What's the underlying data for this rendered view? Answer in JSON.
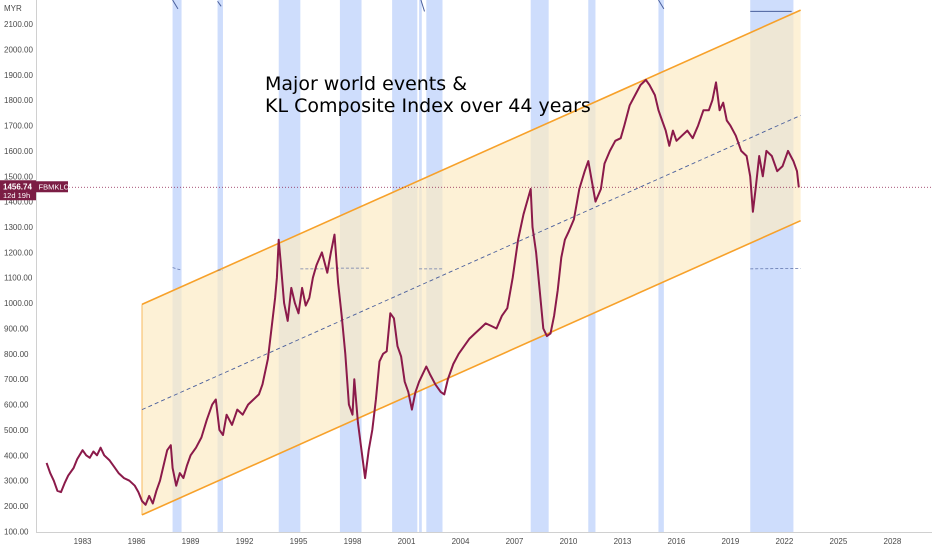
{
  "chart_data": {
    "type": "line",
    "title_lines": [
      "Major world events &",
      "KL Composite Index over 44 years"
    ],
    "y_unit": "MYR",
    "yticks": [
      100,
      200,
      300,
      400,
      500,
      600,
      700,
      800,
      900,
      1000,
      1100,
      1200,
      1300,
      1400,
      1500,
      1600,
      1700,
      1800,
      1900,
      2000,
      2100
    ],
    "ytick_labels": [
      "100.00",
      "200.00",
      "300.00",
      "400.00",
      "500.00",
      "600.00",
      "700.00",
      "800.00",
      "900.00",
      "1000.00",
      "1100.00",
      "1200.00",
      "1300.00",
      "1400.00",
      "1500.00",
      "1600.00",
      "1700.00",
      "1800.00",
      "1900.00",
      "2000.00",
      "2100.00"
    ],
    "xticks": [
      1983,
      1986,
      1989,
      1992,
      1995,
      1998,
      2001,
      2004,
      2007,
      2010,
      2013,
      2016,
      2019,
      2022,
      2025,
      2028
    ],
    "xtick_labels": [
      "1983",
      "1986",
      "1989",
      "1992",
      "1995",
      "1998",
      "2001",
      "2004",
      "2007",
      "2010",
      "2013",
      "2016",
      "2019",
      "2022",
      "2025",
      "2028"
    ],
    "xlim": [
      1978.5,
      2030.2
    ],
    "ylim": [
      70,
      2195
    ],
    "current_value": {
      "value": 1456.74,
      "label": "1456.74",
      "symbol": "FBMKLCI",
      "countdown": "12d 19h"
    },
    "event_bands": [
      {
        "x0": 1988.0,
        "x1": 1988.5
      },
      {
        "x0": 1990.5,
        "x1": 1990.8
      },
      {
        "x0": 1993.9,
        "x1": 1995.1
      },
      {
        "x0": 1997.3,
        "x1": 1998.5
      },
      {
        "x0": 2000.2,
        "x1": 2001.6
      },
      {
        "x0": 2001.7,
        "x1": 2001.85
      },
      {
        "x0": 2002.1,
        "x1": 2003.0
      },
      {
        "x0": 2007.9,
        "x1": 2008.9
      },
      {
        "x0": 2011.1,
        "x1": 2011.5
      },
      {
        "x0": 2015.0,
        "x1": 2015.3
      },
      {
        "x0": 2020.1,
        "x1": 2022.5
      }
    ],
    "regression_channel": {
      "x_start": 1986.3,
      "x_end": 2022.9,
      "upper": [
        995,
        2155
      ],
      "middle": [
        580,
        1740
      ],
      "lower": [
        165,
        1325
      ]
    },
    "series": [
      {
        "values": [
          [
            1981.0,
            370
          ],
          [
            1981.2,
            330
          ],
          [
            1981.4,
            300
          ],
          [
            1981.6,
            260
          ],
          [
            1981.8,
            255
          ],
          [
            1982.0,
            290
          ],
          [
            1982.2,
            320
          ],
          [
            1982.5,
            350
          ],
          [
            1982.7,
            385
          ],
          [
            1983.0,
            420
          ],
          [
            1983.2,
            400
          ],
          [
            1983.4,
            390
          ],
          [
            1983.6,
            415
          ],
          [
            1983.8,
            400
          ],
          [
            1984.0,
            430
          ],
          [
            1984.2,
            400
          ],
          [
            1984.5,
            380
          ],
          [
            1984.7,
            360
          ],
          [
            1985.0,
            330
          ],
          [
            1985.3,
            310
          ],
          [
            1985.6,
            300
          ],
          [
            1985.9,
            280
          ],
          [
            1986.1,
            255
          ],
          [
            1986.3,
            220
          ],
          [
            1986.5,
            205
          ],
          [
            1986.7,
            240
          ],
          [
            1986.9,
            210
          ],
          [
            1987.1,
            260
          ],
          [
            1987.3,
            300
          ],
          [
            1987.5,
            360
          ],
          [
            1987.7,
            420
          ],
          [
            1987.9,
            440
          ],
          [
            1988.0,
            350
          ],
          [
            1988.2,
            280
          ],
          [
            1988.4,
            330
          ],
          [
            1988.6,
            310
          ],
          [
            1988.8,
            360
          ],
          [
            1989.0,
            400
          ],
          [
            1989.3,
            430
          ],
          [
            1989.6,
            470
          ],
          [
            1989.9,
            540
          ],
          [
            1990.2,
            600
          ],
          [
            1990.4,
            620
          ],
          [
            1990.6,
            500
          ],
          [
            1990.8,
            480
          ],
          [
            1991.0,
            560
          ],
          [
            1991.3,
            520
          ],
          [
            1991.6,
            580
          ],
          [
            1991.9,
            560
          ],
          [
            1992.2,
            600
          ],
          [
            1992.5,
            620
          ],
          [
            1992.8,
            640
          ],
          [
            1993.0,
            680
          ],
          [
            1993.3,
            780
          ],
          [
            1993.5,
            900
          ],
          [
            1993.7,
            1020
          ],
          [
            1993.8,
            1100
          ],
          [
            1993.9,
            1250
          ],
          [
            1994.0,
            1170
          ],
          [
            1994.2,
            1000
          ],
          [
            1994.4,
            930
          ],
          [
            1994.6,
            1060
          ],
          [
            1994.8,
            1000
          ],
          [
            1995.0,
            960
          ],
          [
            1995.2,
            1060
          ],
          [
            1995.4,
            990
          ],
          [
            1995.6,
            1020
          ],
          [
            1995.8,
            1100
          ],
          [
            1996.0,
            1150
          ],
          [
            1996.3,
            1200
          ],
          [
            1996.6,
            1120
          ],
          [
            1996.8,
            1200
          ],
          [
            1997.0,
            1270
          ],
          [
            1997.2,
            1080
          ],
          [
            1997.4,
            950
          ],
          [
            1997.6,
            800
          ],
          [
            1997.8,
            600
          ],
          [
            1998.0,
            560
          ],
          [
            1998.1,
            700
          ],
          [
            1998.3,
            530
          ],
          [
            1998.5,
            420
          ],
          [
            1998.7,
            310
          ],
          [
            1998.9,
            420
          ],
          [
            1999.1,
            500
          ],
          [
            1999.3,
            620
          ],
          [
            1999.5,
            770
          ],
          [
            1999.7,
            800
          ],
          [
            1999.9,
            810
          ],
          [
            2000.1,
            960
          ],
          [
            2000.3,
            940
          ],
          [
            2000.5,
            830
          ],
          [
            2000.7,
            790
          ],
          [
            2000.9,
            690
          ],
          [
            2001.1,
            650
          ],
          [
            2001.3,
            580
          ],
          [
            2001.5,
            650
          ],
          [
            2001.7,
            690
          ],
          [
            2001.9,
            720
          ],
          [
            2002.1,
            750
          ],
          [
            2002.3,
            720
          ],
          [
            2002.6,
            680
          ],
          [
            2002.9,
            650
          ],
          [
            2003.1,
            640
          ],
          [
            2003.3,
            700
          ],
          [
            2003.6,
            760
          ],
          [
            2003.9,
            800
          ],
          [
            2004.2,
            830
          ],
          [
            2004.5,
            860
          ],
          [
            2004.8,
            880
          ],
          [
            2005.1,
            900
          ],
          [
            2005.4,
            920
          ],
          [
            2005.7,
            910
          ],
          [
            2006.0,
            900
          ],
          [
            2006.3,
            950
          ],
          [
            2006.6,
            980
          ],
          [
            2006.9,
            1100
          ],
          [
            2007.2,
            1250
          ],
          [
            2007.5,
            1350
          ],
          [
            2007.7,
            1400
          ],
          [
            2007.9,
            1450
          ],
          [
            2008.0,
            1300
          ],
          [
            2008.2,
            1200
          ],
          [
            2008.4,
            1050
          ],
          [
            2008.6,
            900
          ],
          [
            2008.8,
            870
          ],
          [
            2009.0,
            880
          ],
          [
            2009.2,
            950
          ],
          [
            2009.4,
            1050
          ],
          [
            2009.6,
            1180
          ],
          [
            2009.8,
            1250
          ],
          [
            2010.0,
            1280
          ],
          [
            2010.3,
            1330
          ],
          [
            2010.6,
            1450
          ],
          [
            2010.9,
            1520
          ],
          [
            2011.1,
            1560
          ],
          [
            2011.3,
            1480
          ],
          [
            2011.5,
            1400
          ],
          [
            2011.8,
            1450
          ],
          [
            2012.0,
            1550
          ],
          [
            2012.3,
            1600
          ],
          [
            2012.6,
            1640
          ],
          [
            2012.9,
            1650
          ],
          [
            2013.1,
            1700
          ],
          [
            2013.4,
            1780
          ],
          [
            2013.7,
            1820
          ],
          [
            2014.0,
            1860
          ],
          [
            2014.3,
            1880
          ],
          [
            2014.5,
            1860
          ],
          [
            2014.8,
            1820
          ],
          [
            2015.0,
            1760
          ],
          [
            2015.2,
            1720
          ],
          [
            2015.4,
            1680
          ],
          [
            2015.6,
            1620
          ],
          [
            2015.8,
            1680
          ],
          [
            2016.0,
            1640
          ],
          [
            2016.3,
            1660
          ],
          [
            2016.6,
            1680
          ],
          [
            2016.9,
            1650
          ],
          [
            2017.2,
            1700
          ],
          [
            2017.5,
            1760
          ],
          [
            2017.8,
            1760
          ],
          [
            2018.0,
            1800
          ],
          [
            2018.2,
            1870
          ],
          [
            2018.4,
            1760
          ],
          [
            2018.6,
            1790
          ],
          [
            2018.8,
            1720
          ],
          [
            2019.0,
            1700
          ],
          [
            2019.3,
            1660
          ],
          [
            2019.6,
            1600
          ],
          [
            2019.9,
            1580
          ],
          [
            2020.1,
            1500
          ],
          [
            2020.25,
            1360
          ],
          [
            2020.4,
            1450
          ],
          [
            2020.6,
            1580
          ],
          [
            2020.8,
            1500
          ],
          [
            2021.0,
            1600
          ],
          [
            2021.3,
            1580
          ],
          [
            2021.6,
            1520
          ],
          [
            2021.9,
            1540
          ],
          [
            2022.2,
            1600
          ],
          [
            2022.5,
            1560
          ],
          [
            2022.7,
            1520
          ],
          [
            2022.8,
            1456.74
          ]
        ]
      }
    ],
    "colors": {
      "line": "#8b1a4a",
      "channel_line": "#f7a12a",
      "channel_fill": "#fcebc4",
      "event_band": "#c5d7fb",
      "midline": "#4a5f9c",
      "price_label_bg": "#7b1d44",
      "axis_text": "#4a4a4a",
      "title": "#000000",
      "current_line": "#8b1a4a"
    }
  }
}
